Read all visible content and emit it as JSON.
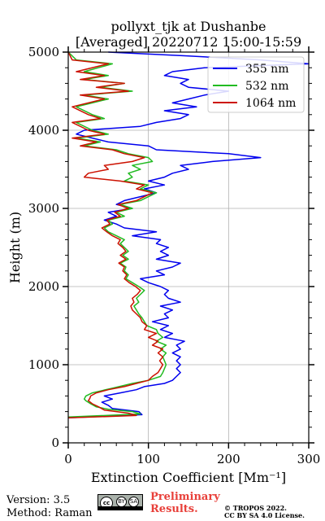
{
  "chart_data": {
    "type": "line",
    "title_line1": "pollyxt_tjk at Dushanbe",
    "title_line2": "[Averaged] 20220712 15:00-15:59",
    "xlabel": "Extinction Coefficient [Mm⁻¹]",
    "ylabel": "Height (m)",
    "xlim": [
      0,
      300
    ],
    "ylim": [
      0,
      5000
    ],
    "xticks": [
      0,
      100,
      200,
      300
    ],
    "yticks": [
      0,
      1000,
      2000,
      3000,
      4000,
      5000
    ],
    "grid": true,
    "legend_position": "top-right",
    "series": [
      {
        "name": "355 nm",
        "color": "#0000ee",
        "points": [
          [
            0,
            320
          ],
          [
            92,
            360
          ],
          [
            88,
            400
          ],
          [
            55,
            440
          ],
          [
            50,
            480
          ],
          [
            42,
            520
          ],
          [
            55,
            560
          ],
          [
            45,
            600
          ],
          [
            65,
            640
          ],
          [
            85,
            680
          ],
          [
            95,
            720
          ],
          [
            120,
            760
          ],
          [
            130,
            800
          ],
          [
            135,
            850
          ],
          [
            140,
            900
          ],
          [
            135,
            950
          ],
          [
            140,
            1000
          ],
          [
            135,
            1050
          ],
          [
            140,
            1100
          ],
          [
            130,
            1150
          ],
          [
            140,
            1200
          ],
          [
            135,
            1250
          ],
          [
            145,
            1300
          ],
          [
            120,
            1350
          ],
          [
            130,
            1400
          ],
          [
            115,
            1450
          ],
          [
            125,
            1500
          ],
          [
            105,
            1550
          ],
          [
            125,
            1600
          ],
          [
            120,
            1650
          ],
          [
            130,
            1700
          ],
          [
            115,
            1750
          ],
          [
            140,
            1800
          ],
          [
            125,
            1850
          ],
          [
            120,
            1900
          ],
          [
            125,
            1950
          ],
          [
            115,
            2000
          ],
          [
            100,
            2050
          ],
          [
            90,
            2100
          ],
          [
            120,
            2150
          ],
          [
            110,
            2200
          ],
          [
            130,
            2250
          ],
          [
            140,
            2300
          ],
          [
            110,
            2350
          ],
          [
            125,
            2400
          ],
          [
            115,
            2450
          ],
          [
            125,
            2500
          ],
          [
            110,
            2550
          ],
          [
            115,
            2600
          ],
          [
            80,
            2650
          ],
          [
            110,
            2700
          ],
          [
            70,
            2750
          ],
          [
            60,
            2800
          ],
          [
            45,
            2850
          ],
          [
            60,
            2900
          ],
          [
            50,
            2950
          ],
          [
            80,
            3000
          ],
          [
            60,
            3050
          ],
          [
            70,
            3100
          ],
          [
            90,
            3150
          ],
          [
            110,
            3200
          ],
          [
            95,
            3250
          ],
          [
            120,
            3300
          ],
          [
            100,
            3350
          ],
          [
            120,
            3400
          ],
          [
            130,
            3450
          ],
          [
            150,
            3500
          ],
          [
            140,
            3550
          ],
          [
            180,
            3600
          ],
          [
            240,
            3650
          ],
          [
            200,
            3700
          ],
          [
            110,
            3750
          ],
          [
            100,
            3800
          ],
          [
            50,
            3850
          ],
          [
            30,
            3900
          ],
          [
            10,
            3950
          ],
          [
            20,
            4000
          ],
          [
            90,
            4050
          ],
          [
            110,
            4100
          ],
          [
            140,
            4150
          ],
          [
            150,
            4200
          ],
          [
            120,
            4250
          ],
          [
            160,
            4300
          ],
          [
            130,
            4350
          ],
          [
            150,
            4400
          ],
          [
            170,
            4450
          ],
          [
            200,
            4500
          ],
          [
            150,
            4550
          ],
          [
            140,
            4600
          ],
          [
            150,
            4650
          ],
          [
            120,
            4700
          ],
          [
            130,
            4750
          ],
          [
            170,
            4800
          ],
          [
            300,
            4850
          ],
          [
            240,
            4900
          ],
          [
            150,
            4950
          ],
          [
            50,
            5000
          ]
        ]
      },
      {
        "name": "532 nm",
        "color": "#22bb22",
        "points": [
          [
            0,
            330
          ],
          [
            90,
            370
          ],
          [
            80,
            400
          ],
          [
            50,
            430
          ],
          [
            35,
            460
          ],
          [
            28,
            500
          ],
          [
            22,
            540
          ],
          [
            20,
            560
          ],
          [
            22,
            600
          ],
          [
            30,
            640
          ],
          [
            55,
            700
          ],
          [
            80,
            760
          ],
          [
            100,
            800
          ],
          [
            115,
            850
          ],
          [
            118,
            900
          ],
          [
            120,
            950
          ],
          [
            122,
            1000
          ],
          [
            120,
            1050
          ],
          [
            118,
            1100
          ],
          [
            122,
            1150
          ],
          [
            115,
            1200
          ],
          [
            122,
            1250
          ],
          [
            110,
            1300
          ],
          [
            118,
            1350
          ],
          [
            112,
            1400
          ],
          [
            110,
            1450
          ],
          [
            98,
            1500
          ],
          [
            95,
            1550
          ],
          [
            92,
            1600
          ],
          [
            88,
            1650
          ],
          [
            85,
            1700
          ],
          [
            82,
            1750
          ],
          [
            88,
            1800
          ],
          [
            85,
            1850
          ],
          [
            90,
            1900
          ],
          [
            95,
            1950
          ],
          [
            88,
            2000
          ],
          [
            80,
            2050
          ],
          [
            72,
            2100
          ],
          [
            75,
            2150
          ],
          [
            70,
            2200
          ],
          [
            72,
            2250
          ],
          [
            65,
            2300
          ],
          [
            75,
            2350
          ],
          [
            68,
            2400
          ],
          [
            75,
            2450
          ],
          [
            70,
            2500
          ],
          [
            65,
            2550
          ],
          [
            70,
            2600
          ],
          [
            60,
            2650
          ],
          [
            50,
            2700
          ],
          [
            45,
            2750
          ],
          [
            55,
            2800
          ],
          [
            50,
            2850
          ],
          [
            70,
            2900
          ],
          [
            60,
            2950
          ],
          [
            80,
            3000
          ],
          [
            65,
            3050
          ],
          [
            90,
            3100
          ],
          [
            100,
            3150
          ],
          [
            110,
            3200
          ],
          [
            90,
            3250
          ],
          [
            100,
            3300
          ],
          [
            70,
            3350
          ],
          [
            80,
            3400
          ],
          [
            75,
            3450
          ],
          [
            90,
            3500
          ],
          [
            80,
            3550
          ],
          [
            105,
            3600
          ],
          [
            100,
            3650
          ],
          [
            75,
            3700
          ],
          [
            60,
            3750
          ],
          [
            20,
            3800
          ],
          [
            40,
            3850
          ],
          [
            10,
            3900
          ],
          [
            50,
            3950
          ],
          [
            30,
            4000
          ],
          [
            10,
            4100
          ],
          [
            45,
            4150
          ],
          [
            30,
            4200
          ],
          [
            10,
            4300
          ],
          [
            50,
            4400
          ],
          [
            20,
            4450
          ],
          [
            80,
            4500
          ],
          [
            40,
            4550
          ],
          [
            70,
            4600
          ],
          [
            20,
            4650
          ],
          [
            50,
            4700
          ],
          [
            20,
            4750
          ],
          [
            55,
            4850
          ],
          [
            10,
            4900
          ],
          [
            0,
            5000
          ]
        ]
      },
      {
        "name": "1064 nm",
        "color": "#cc1100",
        "points": [
          [
            0,
            320
          ],
          [
            85,
            350
          ],
          [
            75,
            380
          ],
          [
            45,
            420
          ],
          [
            38,
            460
          ],
          [
            30,
            500
          ],
          [
            25,
            540
          ],
          [
            27,
            570
          ],
          [
            28,
            600
          ],
          [
            35,
            640
          ],
          [
            50,
            680
          ],
          [
            70,
            720
          ],
          [
            85,
            760
          ],
          [
            100,
            800
          ],
          [
            105,
            850
          ],
          [
            112,
            900
          ],
          [
            115,
            950
          ],
          [
            118,
            1000
          ],
          [
            114,
            1050
          ],
          [
            118,
            1100
          ],
          [
            112,
            1150
          ],
          [
            118,
            1200
          ],
          [
            105,
            1250
          ],
          [
            112,
            1300
          ],
          [
            100,
            1350
          ],
          [
            110,
            1400
          ],
          [
            95,
            1450
          ],
          [
            98,
            1500
          ],
          [
            92,
            1550
          ],
          [
            90,
            1600
          ],
          [
            85,
            1650
          ],
          [
            80,
            1700
          ],
          [
            78,
            1750
          ],
          [
            82,
            1800
          ],
          [
            80,
            1850
          ],
          [
            86,
            1900
          ],
          [
            90,
            1950
          ],
          [
            84,
            2000
          ],
          [
            76,
            2050
          ],
          [
            70,
            2100
          ],
          [
            73,
            2150
          ],
          [
            68,
            2200
          ],
          [
            70,
            2250
          ],
          [
            63,
            2300
          ],
          [
            72,
            2350
          ],
          [
            65,
            2400
          ],
          [
            72,
            2450
          ],
          [
            68,
            2500
          ],
          [
            62,
            2550
          ],
          [
            65,
            2600
          ],
          [
            55,
            2650
          ],
          [
            48,
            2700
          ],
          [
            42,
            2750
          ],
          [
            52,
            2800
          ],
          [
            48,
            2850
          ],
          [
            65,
            2900
          ],
          [
            58,
            2950
          ],
          [
            75,
            3000
          ],
          [
            62,
            3050
          ],
          [
            85,
            3100
          ],
          [
            95,
            3150
          ],
          [
            105,
            3200
          ],
          [
            85,
            3250
          ],
          [
            95,
            3300
          ],
          [
            65,
            3350
          ],
          [
            20,
            3400
          ],
          [
            25,
            3450
          ],
          [
            50,
            3500
          ],
          [
            45,
            3550
          ],
          [
            80,
            3600
          ],
          [
            95,
            3650
          ],
          [
            70,
            3700
          ],
          [
            55,
            3750
          ],
          [
            15,
            3800
          ],
          [
            35,
            3850
          ],
          [
            5,
            3900
          ],
          [
            45,
            3950
          ],
          [
            25,
            4000
          ],
          [
            5,
            4100
          ],
          [
            40,
            4150
          ],
          [
            25,
            4200
          ],
          [
            5,
            4300
          ],
          [
            45,
            4400
          ],
          [
            15,
            4450
          ],
          [
            75,
            4500
          ],
          [
            35,
            4550
          ],
          [
            70,
            4600
          ],
          [
            15,
            4650
          ],
          [
            45,
            4700
          ],
          [
            10,
            4750
          ],
          [
            50,
            4850
          ],
          [
            5,
            4900
          ],
          [
            0,
            5000
          ]
        ]
      }
    ]
  },
  "footer": {
    "version": "Version: 3.5",
    "method": "Method: Raman",
    "cc_label": "cc",
    "cc_by": "BY",
    "cc_sa": "SA",
    "preliminary_1": "Preliminary",
    "preliminary_2": "Results.",
    "copyright": "© TROPOS 2022.",
    "license": "CC BY SA 4.0 License."
  }
}
